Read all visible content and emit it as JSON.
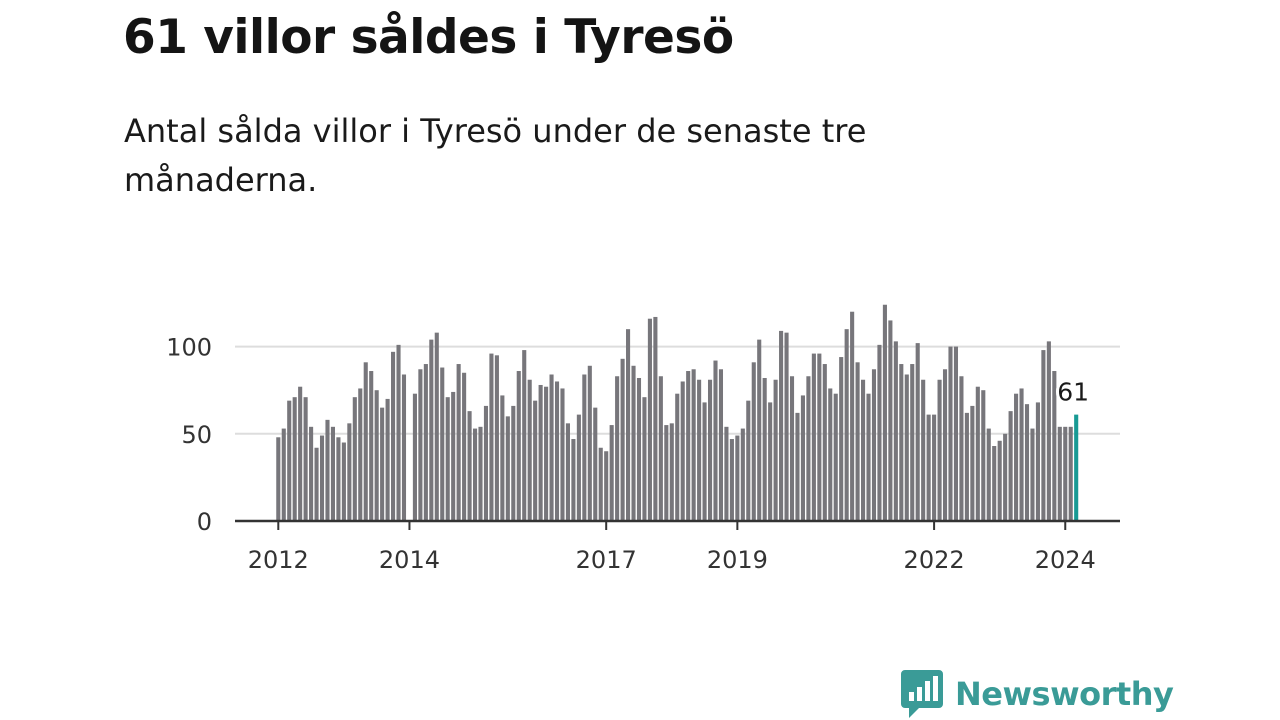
{
  "title": "61 villor såldes i Tyresö",
  "subtitle": "Antal sålda villor i Tyresö under de senaste tre månaderna.",
  "logo": {
    "text": "Newsworthy",
    "icon": "newsworthy-logo-icon",
    "color": "#3a9b97"
  },
  "colors": {
    "bar": "#77767b",
    "highlight": "#189a94",
    "grid": "#dddddd",
    "axis": "#333333"
  },
  "chart_data": {
    "type": "bar",
    "title": "",
    "xlabel": "",
    "ylabel": "",
    "ylim": [
      0,
      125
    ],
    "yticks": [
      0,
      50,
      100
    ],
    "grid": true,
    "x_tick_labels": [
      "2012",
      "2014",
      "2017",
      "2019",
      "2022",
      "2024"
    ],
    "x_tick_dates": [
      "2012-01",
      "2014-01",
      "2017-01",
      "2019-01",
      "2022-01",
      "2024-01"
    ],
    "start_month": "2012-01",
    "end_month": "2024-03",
    "values": [
      48,
      53,
      69,
      71,
      77,
      71,
      54,
      42,
      49,
      58,
      54,
      48,
      45,
      56,
      71,
      76,
      91,
      86,
      75,
      65,
      70,
      97,
      101,
      84,
      0,
      73,
      87,
      90,
      104,
      108,
      88,
      71,
      74,
      90,
      85,
      63,
      53,
      54,
      66,
      96,
      95,
      72,
      60,
      66,
      86,
      98,
      81,
      69,
      78,
      77,
      84,
      80,
      76,
      56,
      47,
      61,
      84,
      89,
      65,
      42,
      40,
      55,
      83,
      93,
      110,
      89,
      82,
      71,
      116,
      117,
      83,
      55,
      56,
      73,
      80,
      86,
      87,
      81,
      68,
      81,
      92,
      87,
      54,
      47,
      49,
      53,
      69,
      91,
      104,
      82,
      68,
      81,
      109,
      108,
      83,
      62,
      72,
      83,
      96,
      96,
      90,
      76,
      73,
      94,
      110,
      120,
      91,
      81,
      73,
      87,
      101,
      124,
      115,
      103,
      90,
      84,
      90,
      102,
      81,
      61,
      61,
      81,
      87,
      100,
      100,
      83,
      62,
      66,
      77,
      75,
      53,
      43,
      46,
      50,
      63,
      73,
      76,
      67,
      53,
      68,
      98,
      103,
      86,
      54,
      54,
      54,
      61
    ],
    "highlight": {
      "month": "2024-03",
      "value": 61,
      "label": "61"
    }
  }
}
